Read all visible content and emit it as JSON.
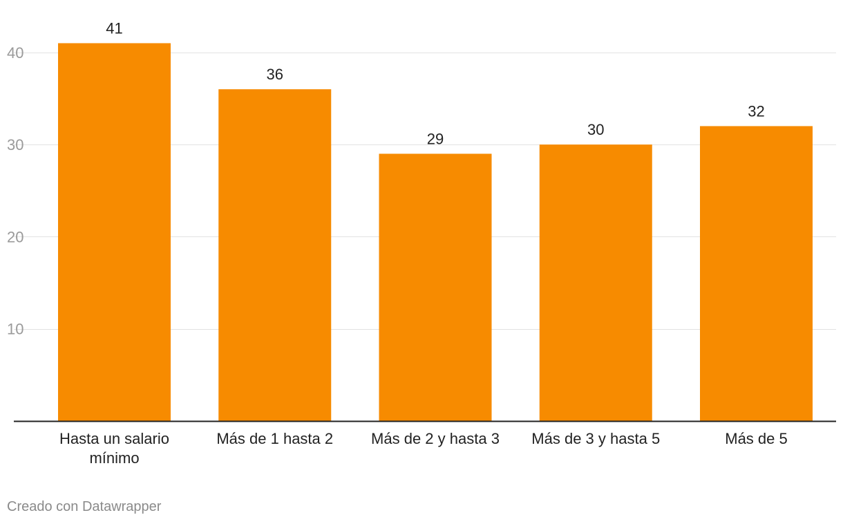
{
  "chart_data": {
    "type": "bar",
    "categories": [
      "Hasta un salario mínimo",
      "Más de 1 hasta 2",
      "Más de 2 y hasta 3",
      "Más de 3 y hasta 5",
      "Más de 5"
    ],
    "category_lines": [
      [
        "Hasta un salario",
        "mínimo"
      ],
      [
        "Más de 1 hasta 2"
      ],
      [
        "Más de 2 y hasta 3"
      ],
      [
        "Más de 3 y hasta 5"
      ],
      [
        "Más de 5"
      ]
    ],
    "values": [
      41,
      36,
      29,
      30,
      32
    ],
    "yticks": [
      10,
      20,
      30,
      40
    ],
    "ylim": [
      0,
      45
    ],
    "title": "",
    "xlabel": "",
    "ylabel": "",
    "grid": true,
    "bar_color": "#f78b00",
    "grid_color": "#e2e2e2",
    "axis_color": "#222222"
  },
  "footer": {
    "credit": "Creado con Datawrapper"
  }
}
